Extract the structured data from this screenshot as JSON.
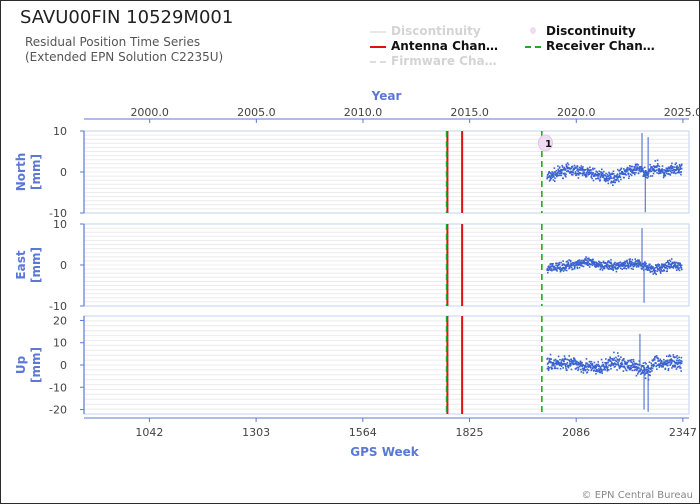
{
  "station_title": "SAVU00FIN 10529M001",
  "subtitle_line1": "Residual Position Time Series",
  "subtitle_line2": "(Extended EPN Solution C2235U)",
  "footer": "© EPN Central Bureau",
  "legend": [
    {
      "label": "Discontinuity",
      "style": "line",
      "color": "#e8e8e8",
      "faded": true
    },
    {
      "label": "Discontinuity",
      "style": "marker",
      "color": "#e6c6ec",
      "faded": false
    },
    {
      "label": "Antenna Chan…",
      "style": "solid",
      "color": "#dd1111",
      "faded": false
    },
    {
      "label": "Receiver Chan…",
      "style": "dashed",
      "color": "#22aa22",
      "faded": false
    },
    {
      "label": "Firmware Cha…",
      "style": "dashed",
      "color": "#dddddd",
      "faded": true
    }
  ],
  "chart_data": {
    "type": "scatter",
    "x_top_axis": {
      "label": "Year",
      "ticks": [
        "2000.0",
        "2005.0",
        "2010.0",
        "2015.0",
        "2020.0",
        "2025.0"
      ],
      "tick_values": [
        2000.0,
        2005.0,
        2010.0,
        2015.0,
        2020.0,
        2025.0
      ]
    },
    "x_bottom_axis": {
      "label": "GPS Week",
      "ticks": [
        "1042",
        "1303",
        "1564",
        "1825",
        "2086",
        "2347"
      ],
      "tick_values": [
        1042,
        1303,
        1564,
        1825,
        2086,
        2347
      ],
      "range": [
        882,
        2362
      ]
    },
    "antenna_changes_gps_week": [
      1771,
      1807
    ],
    "receiver_changes_gps_week": [
      1769,
      2002
    ],
    "discontinuity_label": "1",
    "discontinuity_gps_week": 2001,
    "data_start_gps_week": 2015,
    "data_end_gps_week": 2345,
    "panels": [
      {
        "name": "North",
        "ylabel_line1": "North",
        "ylabel_line2": "[mm]",
        "ylim": [
          -10,
          10
        ],
        "yticks": [
          "10",
          "0",
          "-10"
        ],
        "ytick_values": [
          10,
          0,
          -10
        ],
        "weeks": [
          2020,
          2060,
          2100,
          2140,
          2180,
          2200,
          2240,
          2260,
          2280,
          2300,
          2320,
          2340
        ],
        "values": [
          -1.2,
          0.5,
          0.2,
          -0.8,
          -1.5,
          -0.3,
          0.8,
          -0.6,
          1.5,
          -0.3,
          0.4,
          0.6
        ],
        "spread": 2.2,
        "spikes": [
          {
            "week": 2247,
            "value": 9.5
          },
          {
            "week": 2255,
            "value": -9.8
          },
          {
            "week": 2262,
            "value": 8.5
          }
        ]
      },
      {
        "name": "East",
        "ylabel_line1": "East",
        "ylabel_line2": "[mm]",
        "ylim": [
          -10,
          10
        ],
        "yticks": [
          "10",
          "0",
          "-10"
        ],
        "ytick_values": [
          10,
          0,
          -10
        ],
        "weeks": [
          2020,
          2060,
          2100,
          2140,
          2180,
          2200,
          2240,
          2260,
          2280,
          2300,
          2320,
          2340
        ],
        "values": [
          -0.8,
          -0.3,
          0.6,
          0.2,
          -0.4,
          0.1,
          0.4,
          -0.5,
          -1.0,
          -0.6,
          0.0,
          -0.3
        ],
        "spread": 1.8,
        "spikes": [
          {
            "week": 2247,
            "value": 9.0
          },
          {
            "week": 2252,
            "value": -9.2
          }
        ]
      },
      {
        "name": "Up",
        "ylabel_line1": "Up",
        "ylabel_line2": "[mm]",
        "ylim": [
          -22,
          22
        ],
        "yticks": [
          "20",
          "10",
          "0",
          "-10",
          "-20"
        ],
        "ytick_values": [
          20,
          10,
          0,
          -10,
          -20
        ],
        "weeks": [
          2020,
          2060,
          2100,
          2140,
          2180,
          2200,
          2240,
          2260,
          2280,
          2300,
          2320,
          2340
        ],
        "values": [
          0.5,
          1.0,
          0.0,
          -2.0,
          1.5,
          0.5,
          -1.0,
          -3.0,
          2.0,
          0.0,
          1.0,
          0.5
        ],
        "spread": 5.0,
        "spikes": [
          {
            "week": 2252,
            "value": -20.0
          },
          {
            "week": 2262,
            "value": -21.0
          },
          {
            "week": 2242,
            "value": 14.0
          }
        ]
      }
    ]
  }
}
